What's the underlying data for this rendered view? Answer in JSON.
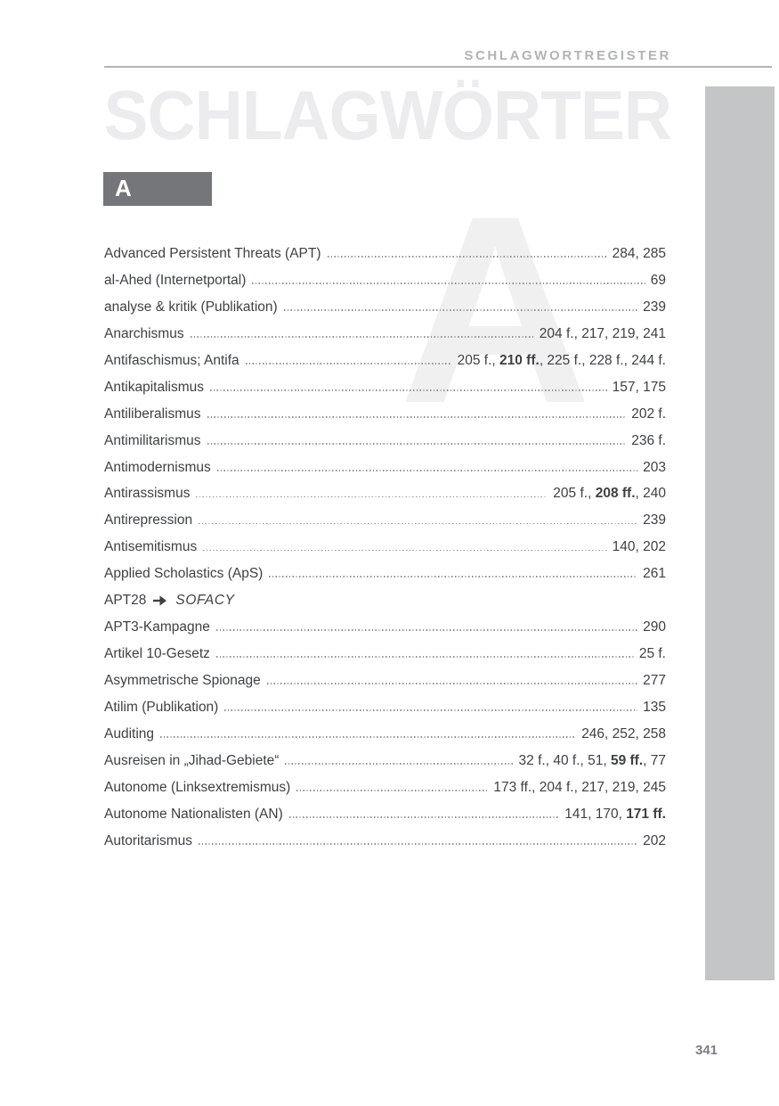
{
  "page": {
    "header_label": "SCHLAGWORTREGISTER",
    "watermark_title": "SCHLAGWÖRTER",
    "section_letter": "A",
    "watermark_letter": "A",
    "page_number": "341"
  },
  "colors": {
    "header_gray": "#b1b3b5",
    "watermark_gray": "#ececee",
    "section_box_gray": "#747679",
    "sidebar_gray": "#c3c5c7",
    "text_gray": "#3e4144",
    "page_number_gray": "#7c7e81"
  },
  "icons": {
    "cross_ref_arrow": "arrow-right-icon"
  },
  "entries": [
    {
      "term": "Advanced Persistent Threats (APT)",
      "refs": [
        {
          "text": "284, 285",
          "bold": false
        }
      ]
    },
    {
      "term": "al-Ahed (Internetportal)",
      "refs": [
        {
          "text": "69",
          "bold": false
        }
      ]
    },
    {
      "term": "analyse & kritik (Publikation)",
      "refs": [
        {
          "text": "239",
          "bold": false
        }
      ]
    },
    {
      "term": "Anarchismus",
      "refs": [
        {
          "text": "204 f., 217, 219, 241",
          "bold": false
        }
      ]
    },
    {
      "term": "Antifaschismus; Antifa",
      "refs": [
        {
          "text": "205 f., ",
          "bold": false
        },
        {
          "text": "210 ff.",
          "bold": true
        },
        {
          "text": ", 225 f., 228 f., 244 f.",
          "bold": false
        }
      ]
    },
    {
      "term": "Antikapitalismus",
      "refs": [
        {
          "text": "157, 175",
          "bold": false
        }
      ]
    },
    {
      "term": "Antiliberalismus",
      "refs": [
        {
          "text": "202 f.",
          "bold": false
        }
      ]
    },
    {
      "term": "Antimilitarismus",
      "refs": [
        {
          "text": "236 f.",
          "bold": false
        }
      ]
    },
    {
      "term": "Antimodernismus",
      "refs": [
        {
          "text": "203",
          "bold": false
        }
      ]
    },
    {
      "term": "Antirassismus",
      "refs": [
        {
          "text": "205 f., ",
          "bold": false
        },
        {
          "text": "208 ff.",
          "bold": true
        },
        {
          "text": ", 240",
          "bold": false
        }
      ]
    },
    {
      "term": "Antirepression",
      "refs": [
        {
          "text": "239",
          "bold": false
        }
      ]
    },
    {
      "term": "Antisemitismus",
      "refs": [
        {
          "text": "140, 202",
          "bold": false
        }
      ]
    },
    {
      "term": "Applied Scholastics (ApS)",
      "refs": [
        {
          "text": "261",
          "bold": false
        }
      ]
    },
    {
      "term": "APT28",
      "cross_ref": "SOFACY"
    },
    {
      "term": "APT3-Kampagne",
      "refs": [
        {
          "text": "290",
          "bold": false
        }
      ]
    },
    {
      "term": "Artikel 10-Gesetz",
      "refs": [
        {
          "text": "25 f.",
          "bold": false
        }
      ]
    },
    {
      "term": "Asymmetrische Spionage",
      "refs": [
        {
          "text": "277",
          "bold": false
        }
      ]
    },
    {
      "term": "Atilim (Publikation)",
      "refs": [
        {
          "text": "135",
          "bold": false
        }
      ]
    },
    {
      "term": "Auditing",
      "refs": [
        {
          "text": "246, 252, 258",
          "bold": false
        }
      ]
    },
    {
      "term": "Ausreisen in „Jihad-Gebiete“",
      "refs": [
        {
          "text": "32 f., 40 f., 51, ",
          "bold": false
        },
        {
          "text": "59 ff.",
          "bold": true
        },
        {
          "text": ", 77",
          "bold": false
        }
      ]
    },
    {
      "term": "Autonome (Linksextremismus)",
      "refs": [
        {
          "text": "173 ff., 204 f., 217, 219, 245",
          "bold": false
        }
      ]
    },
    {
      "term": "Autonome Nationalisten (AN)",
      "refs": [
        {
          "text": "141, 170, ",
          "bold": false
        },
        {
          "text": "171 ff.",
          "bold": true
        }
      ]
    },
    {
      "term": "Autoritarismus",
      "refs": [
        {
          "text": "202",
          "bold": false
        }
      ]
    }
  ]
}
